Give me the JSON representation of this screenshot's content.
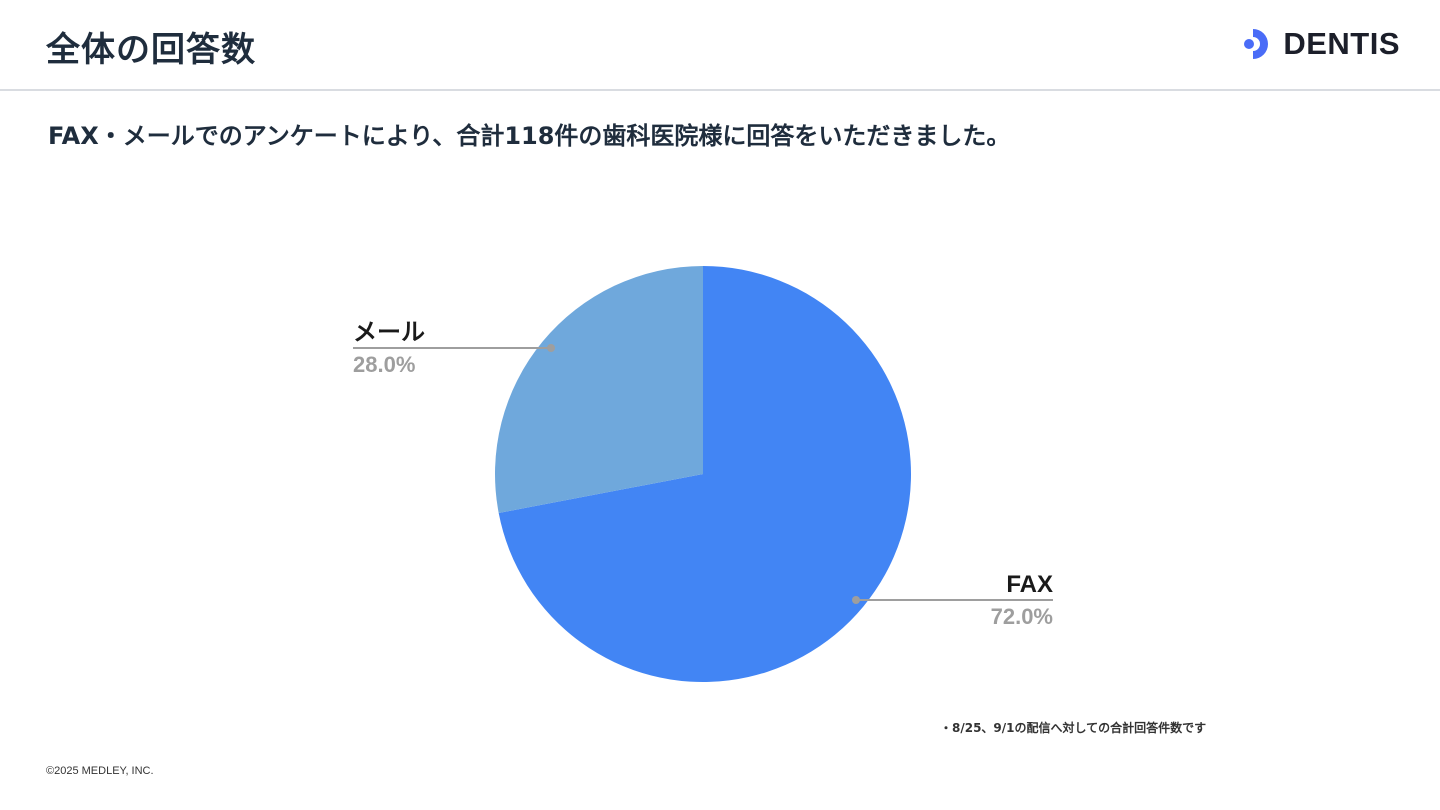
{
  "header": {
    "title": "全体の回答数",
    "logo_text": "DENTIS",
    "logo_color": "#4a6cf7"
  },
  "subtitle": "FAX・メールでのアンケートにより、合計118件の歯科医院様に回答をいただきました。",
  "chart_data": {
    "type": "pie",
    "title": "",
    "slices": [
      {
        "label": "FAX",
        "percent_label": "72.0%",
        "value": 72.0,
        "color": "#4285f4"
      },
      {
        "label": "メール",
        "percent_label": "28.0%",
        "value": 28.0,
        "color": "#6fa8dc"
      }
    ],
    "start_angle": "12 o'clock, clockwise",
    "legend": "none"
  },
  "footnote": "・8/25、9/1の配信へ対しての合計回答件数です",
  "copyright": "©2025 MEDLEY, INC."
}
